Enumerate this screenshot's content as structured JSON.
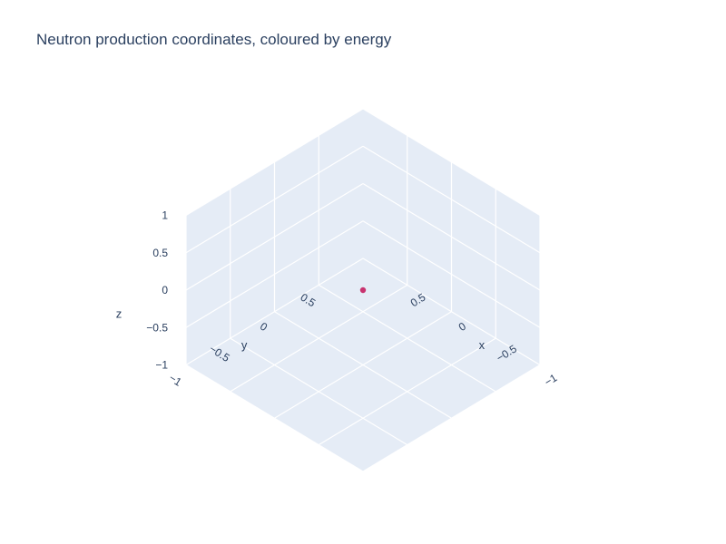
{
  "chart_data": {
    "type": "scatter3d",
    "title": "Neutron production coordinates, coloured by energy",
    "xlabel": "x",
    "ylabel": "y",
    "zlabel": "z",
    "x_range": [
      -1,
      1
    ],
    "y_range": [
      -1,
      1
    ],
    "z_range": [
      -1,
      1
    ],
    "x_ticks": [
      {
        "v": -1,
        "label": "−1"
      },
      {
        "v": -0.5,
        "label": "−0.5"
      },
      {
        "v": 0,
        "label": "0"
      },
      {
        "v": 0.5,
        "label": "0.5"
      }
    ],
    "y_ticks": [
      {
        "v": -1,
        "label": "−1"
      },
      {
        "v": -0.5,
        "label": "−0.5"
      },
      {
        "v": 0,
        "label": "0"
      },
      {
        "v": 0.5,
        "label": "0.5"
      }
    ],
    "z_ticks": [
      {
        "v": -1,
        "label": "−1"
      },
      {
        "v": -0.5,
        "label": "−0.5"
      },
      {
        "v": 0,
        "label": "0"
      },
      {
        "v": 0.5,
        "label": "0.5"
      },
      {
        "v": 1,
        "label": "1"
      }
    ],
    "grid": true,
    "points": [
      {
        "x": 0,
        "y": 0,
        "z": 0,
        "color": "#c8336f"
      }
    ]
  },
  "colors": {
    "background": "#e5ecf6",
    "gridline": "#ffffff",
    "text": "#2a3f5f",
    "marker": "#c8336f"
  }
}
